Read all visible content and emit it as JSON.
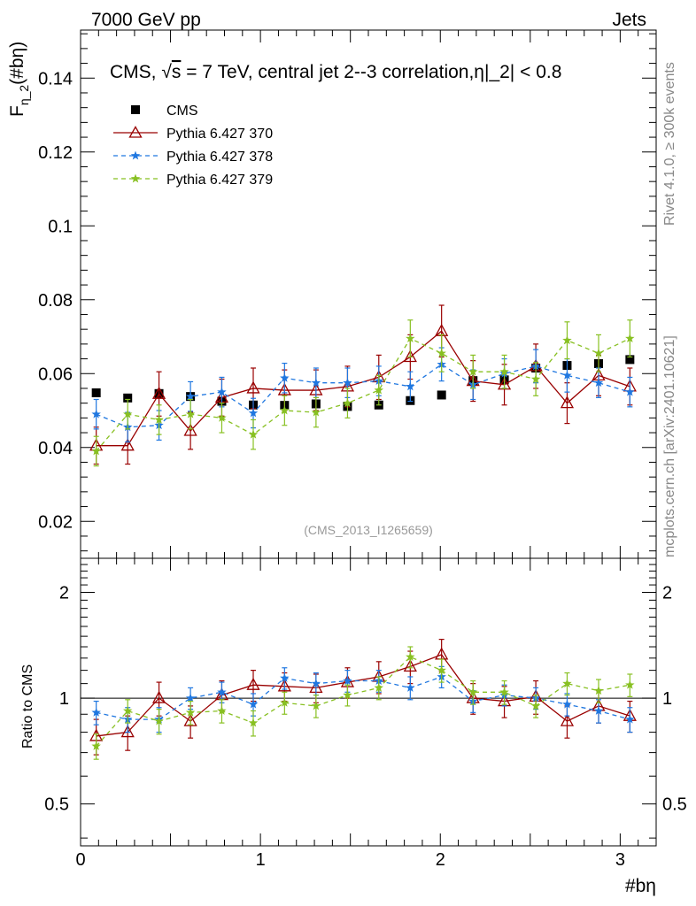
{
  "header": {
    "left": "7000 GeV pp",
    "right": "Jets"
  },
  "side_labels": {
    "top": "Rivet 4.1.0, ≥ 300k events",
    "bottom": "mcplots.cern.ch [arXiv:2401.10621]"
  },
  "colors": {
    "cms": "#000000",
    "p370": "#990000",
    "p378": "#1f77e0",
    "p379": "#88c022"
  },
  "chart_data": [
    {
      "type": "scatter",
      "title": "CMS, √s = 7 TeV, central jet 2--3 correlation,η|_2| < 0.8",
      "title_prefix": "CMS, ",
      "title_sqrt": "√",
      "title_s": "s",
      "title_rest": " = 7 TeV, central jet 2--3 correlation,η|_2| < 0.8",
      "ylabel_main": "F",
      "ylabel_sub": "η_2",
      "ylabel_rest": "(#bη)",
      "watermark": "(CMS_2013_I1265659)",
      "xlim": [
        0,
        3.2
      ],
      "ylim": [
        0.01,
        0.153
      ],
      "yticks": [
        0.02,
        0.04,
        0.06,
        0.08,
        0.1,
        0.12,
        0.14
      ],
      "ytick_labels": [
        "0.02",
        "0.04",
        "0.06",
        "0.08",
        "0.1",
        "0.12",
        "0.14"
      ],
      "x": [
        0.087,
        0.262,
        0.436,
        0.611,
        0.785,
        0.96,
        1.134,
        1.309,
        1.484,
        1.658,
        1.833,
        2.007,
        2.182,
        2.356,
        2.531,
        2.705,
        2.88,
        3.054
      ],
      "series": [
        {
          "name": "CMS",
          "key": "cms",
          "marker": "square",
          "values": [
            0.0548,
            0.0534,
            0.0546,
            0.0538,
            0.0525,
            0.0515,
            0.0514,
            0.0518,
            0.0511,
            0.0515,
            0.0527,
            0.0542,
            0.0581,
            0.0583,
            0.0615,
            0.0622,
            0.0627,
            0.0638
          ]
        },
        {
          "name": "Pythia 6.427 370",
          "key": "p370",
          "marker": "triangle",
          "dash": "",
          "values": [
            0.0405,
            0.0405,
            0.0545,
            0.0445,
            0.0535,
            0.056,
            0.0555,
            0.0555,
            0.0565,
            0.059,
            0.0645,
            0.0715,
            0.058,
            0.057,
            0.062,
            0.052,
            0.0595,
            0.0565
          ],
          "errors": [
            0.005,
            0.005,
            0.006,
            0.005,
            0.005,
            0.0055,
            0.0055,
            0.0055,
            0.0055,
            0.006,
            0.006,
            0.007,
            0.0055,
            0.0055,
            0.006,
            0.0055,
            0.0055,
            0.005
          ]
        },
        {
          "name": "Pythia 6.427 378",
          "key": "p378",
          "marker": "star",
          "dash": "5,4",
          "values": [
            0.049,
            0.0455,
            0.046,
            0.0538,
            0.055,
            0.0493,
            0.0588,
            0.0575,
            0.0575,
            0.058,
            0.0565,
            0.0625,
            0.057,
            0.06,
            0.062,
            0.0595,
            0.0575,
            0.055
          ],
          "errors": [
            0.004,
            0.004,
            0.004,
            0.004,
            0.004,
            0.004,
            0.004,
            0.004,
            0.004,
            0.004,
            0.004,
            0.0045,
            0.004,
            0.004,
            0.0045,
            0.0045,
            0.004,
            0.004
          ]
        },
        {
          "name": "Pythia 6.427 379",
          "key": "p379",
          "marker": "star",
          "dash": "5,4",
          "values": [
            0.039,
            0.049,
            0.0475,
            0.049,
            0.048,
            0.0435,
            0.05,
            0.0495,
            0.052,
            0.0555,
            0.0695,
            0.0655,
            0.0605,
            0.0605,
            0.0585,
            0.069,
            0.0655,
            0.0695
          ],
          "errors": [
            0.004,
            0.004,
            0.004,
            0.004,
            0.004,
            0.004,
            0.004,
            0.004,
            0.004,
            0.004,
            0.005,
            0.005,
            0.0045,
            0.0045,
            0.0045,
            0.005,
            0.005,
            0.005
          ]
        }
      ]
    },
    {
      "type": "scatter",
      "ylabel": "Ratio to CMS",
      "xlabel": "#bη",
      "xlim": [
        0,
        3.2
      ],
      "ylim": [
        0.38,
        2.5
      ],
      "ylog": true,
      "xticks": [
        0,
        1,
        2,
        3
      ],
      "xtick_labels": [
        "0",
        "1",
        "2",
        "3"
      ],
      "yticks": [
        0.5,
        1,
        2
      ],
      "ytick_labels": [
        "0.5",
        "1",
        "2"
      ],
      "x": [
        0.087,
        0.262,
        0.436,
        0.611,
        0.785,
        0.96,
        1.134,
        1.309,
        1.484,
        1.658,
        1.833,
        2.007,
        2.182,
        2.356,
        2.531,
        2.705,
        2.88,
        3.054
      ],
      "series": [
        {
          "name": "Pythia 6.427 370",
          "key": "p370",
          "marker": "triangle",
          "dash": "",
          "values": [
            0.78,
            0.8,
            1.0,
            0.86,
            1.02,
            1.09,
            1.08,
            1.07,
            1.11,
            1.15,
            1.23,
            1.33,
            1.0,
            0.98,
            1.01,
            0.86,
            0.95,
            0.89
          ],
          "errors": [
            0.09,
            0.09,
            0.11,
            0.09,
            0.1,
            0.11,
            0.1,
            0.1,
            0.11,
            0.12,
            0.13,
            0.14,
            0.1,
            0.1,
            0.11,
            0.09,
            0.1,
            0.09
          ]
        },
        {
          "name": "Pythia 6.427 378",
          "key": "p378",
          "marker": "star",
          "dash": "5,4",
          "values": [
            0.91,
            0.87,
            0.87,
            1.0,
            1.04,
            0.96,
            1.14,
            1.1,
            1.12,
            1.12,
            1.07,
            1.15,
            0.98,
            1.02,
            1.0,
            0.96,
            0.92,
            0.87
          ],
          "errors": [
            0.07,
            0.07,
            0.07,
            0.07,
            0.07,
            0.07,
            0.08,
            0.08,
            0.08,
            0.08,
            0.08,
            0.08,
            0.07,
            0.07,
            0.07,
            0.07,
            0.07,
            0.07
          ]
        },
        {
          "name": "Pythia 6.427 379",
          "key": "p379",
          "marker": "star",
          "dash": "5,4",
          "values": [
            0.73,
            0.92,
            0.86,
            0.91,
            0.92,
            0.85,
            0.97,
            0.95,
            1.02,
            1.07,
            1.31,
            1.2,
            1.04,
            1.04,
            0.95,
            1.1,
            1.05,
            1.09
          ],
          "errors": [
            0.06,
            0.07,
            0.07,
            0.07,
            0.07,
            0.07,
            0.07,
            0.07,
            0.07,
            0.08,
            0.09,
            0.09,
            0.08,
            0.08,
            0.07,
            0.08,
            0.08,
            0.08
          ]
        }
      ]
    }
  ]
}
